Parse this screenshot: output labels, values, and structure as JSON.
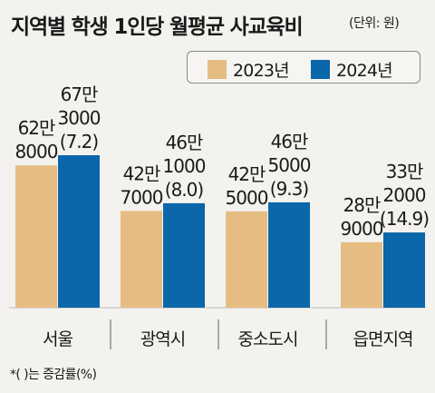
{
  "title": "지역별 학생 1인당 월평균 사교육비",
  "unit": "(단위: 원)",
  "footnote": "*( )는 증감률(%)",
  "colors": {
    "y2023": "#e5bd82",
    "y2024": "#0b66aa",
    "background": "#f3f2ee"
  },
  "chart_data": {
    "type": "bar",
    "title": "지역별 학생 1인당 월평균 사교육비",
    "unit": "원",
    "categories": [
      "서울",
      "광역시",
      "중소도시",
      "읍면지역"
    ],
    "series": [
      {
        "name": "2023년",
        "values": [
          628000,
          427000,
          425000,
          289000
        ]
      },
      {
        "name": "2024년",
        "values": [
          673000,
          461000,
          465000,
          332000
        ]
      }
    ],
    "labels": [
      [
        [
          "62만",
          "8000"
        ],
        [
          "42만",
          "7000"
        ],
        [
          "42만",
          "5000"
        ],
        [
          "28만",
          "9000"
        ]
      ],
      [
        [
          "67만",
          "3000",
          "(7.2)"
        ],
        [
          "46만",
          "1000",
          "(8.0)"
        ],
        [
          "46만",
          "5000",
          "(9.3)"
        ],
        [
          "33만",
          "2000",
          "(14.9)"
        ]
      ]
    ],
    "growth_rate_pct": [
      7.2,
      8.0,
      9.3,
      14.9
    ],
    "legend_position": "top-right",
    "grid": false
  }
}
